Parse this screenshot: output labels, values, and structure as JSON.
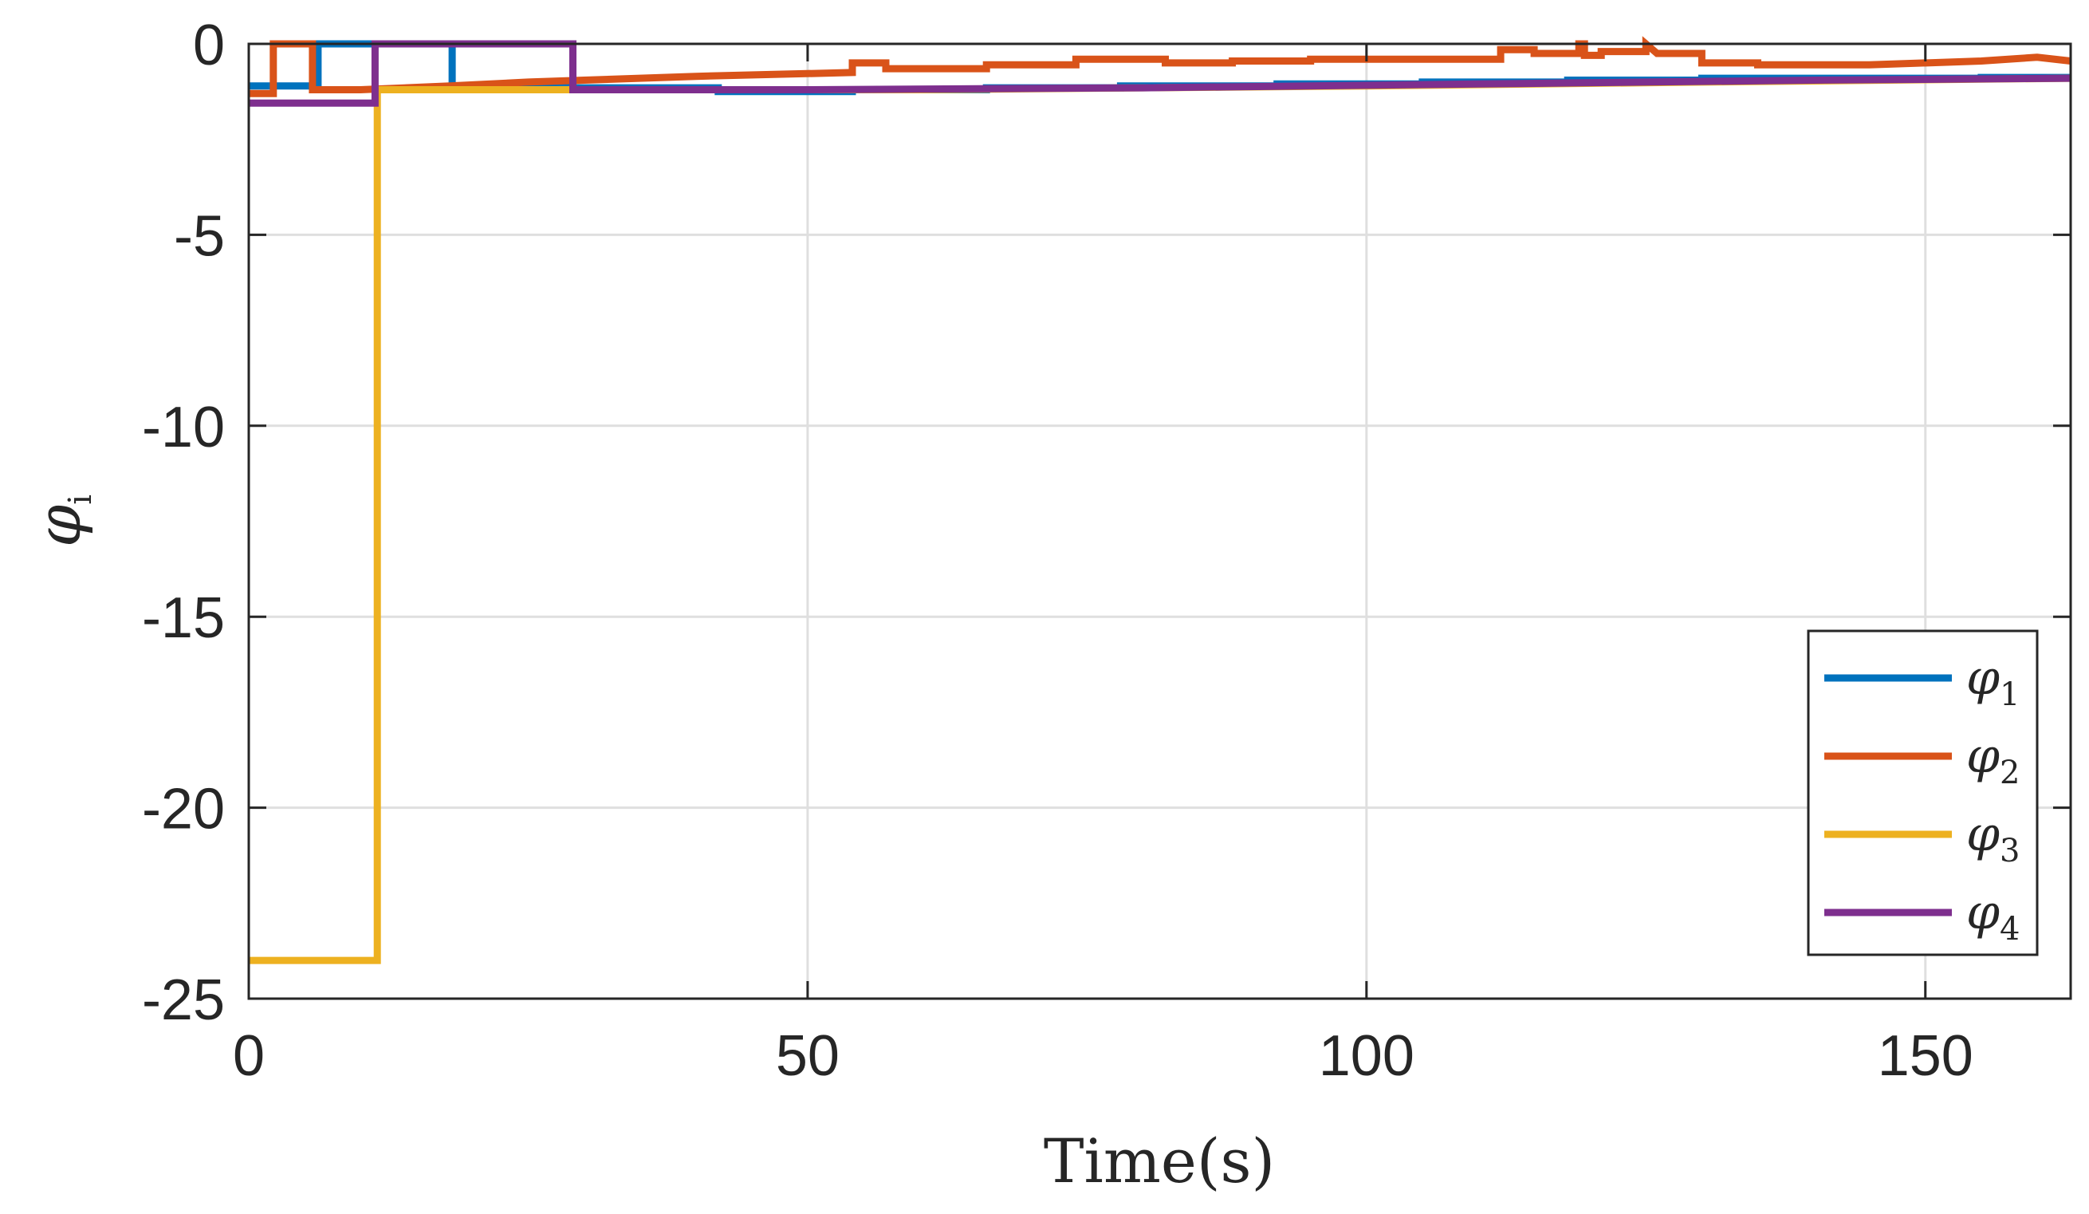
{
  "chart_data": {
    "type": "line",
    "xlabel": "Time(s)",
    "ylabel": "φ",
    "ylabel_sub": "i",
    "xlim": [
      0,
      163
    ],
    "ylim": [
      -25,
      0
    ],
    "xticks": [
      0,
      50,
      100,
      150
    ],
    "xtick_labels": [
      "0",
      "50",
      "100",
      "150"
    ],
    "yticks": [
      0,
      -5,
      -10,
      -15,
      -20,
      -25
    ],
    "ytick_labels": [
      "0",
      "-5",
      "-10",
      "-15",
      "-20",
      "-25"
    ],
    "grid": true,
    "legend_position": "bottom-right",
    "series": [
      {
        "name": "φ",
        "name_sub": "1",
        "color": "#0072BD",
        "x": [
          0,
          6.2,
          6.2,
          18.2,
          18.2,
          29,
          29,
          42,
          42,
          54,
          54,
          66,
          66,
          78,
          78,
          92,
          92,
          105,
          105,
          118,
          118,
          130,
          130,
          142,
          142,
          155,
          155,
          163
        ],
        "y": [
          -1.1,
          -1.1,
          0,
          0,
          -1.1,
          -1.1,
          -1.15,
          -1.15,
          -1.25,
          -1.25,
          -1.2,
          -1.2,
          -1.15,
          -1.15,
          -1.1,
          -1.1,
          -1.05,
          -1.05,
          -1.0,
          -1.0,
          -0.95,
          -0.95,
          -0.9,
          -0.9,
          -0.9,
          -0.9,
          -0.88,
          -0.88
        ]
      },
      {
        "name": "φ",
        "name_sub": "2",
        "color": "#D95319",
        "x": [
          0,
          2.2,
          2.2,
          5.7,
          5.7,
          10,
          18,
          25,
          30,
          40,
          54,
          54,
          57,
          57,
          66,
          66,
          74,
          74,
          82,
          82,
          88,
          88,
          95,
          95,
          112,
          112,
          115,
          115,
          119,
          119,
          119.5,
          119.5,
          121,
          121,
          125,
          125,
          126,
          126,
          130,
          130,
          135,
          135,
          145,
          145,
          155,
          155,
          160,
          160,
          163
        ],
        "y": [
          -1.3,
          -1.3,
          0,
          0,
          -1.2,
          -1.2,
          -1.1,
          -1.0,
          -0.95,
          -0.85,
          -0.75,
          -0.5,
          -0.5,
          -0.65,
          -0.65,
          -0.55,
          -0.55,
          -0.4,
          -0.4,
          -0.5,
          -0.5,
          -0.45,
          -0.45,
          -0.4,
          -0.4,
          -0.15,
          -0.15,
          -0.25,
          -0.25,
          0,
          0,
          -0.3,
          -0.3,
          -0.2,
          -0.2,
          0,
          -0.25,
          -0.25,
          -0.25,
          -0.5,
          -0.5,
          -0.55,
          -0.55,
          -0.55,
          -0.45,
          -0.45,
          -0.35,
          -0.35,
          -0.45
        ]
      },
      {
        "name": "φ",
        "name_sub": "3",
        "color": "#EDB120",
        "x": [
          0,
          11.5,
          11.5,
          29,
          29,
          60,
          100,
          130,
          163
        ],
        "y": [
          -24,
          -24,
          -1.2,
          -1.2,
          -1.2,
          -1.2,
          -1.1,
          -1.0,
          -0.9
        ]
      },
      {
        "name": "φ",
        "name_sub": "4",
        "color": "#7E2F8E",
        "x": [
          0,
          11.3,
          11.3,
          29,
          29,
          50,
          80,
          110,
          140,
          163
        ],
        "y": [
          -1.55,
          -1.55,
          0,
          0,
          -1.2,
          -1.2,
          -1.15,
          -1.05,
          -0.95,
          -0.9
        ]
      }
    ]
  }
}
